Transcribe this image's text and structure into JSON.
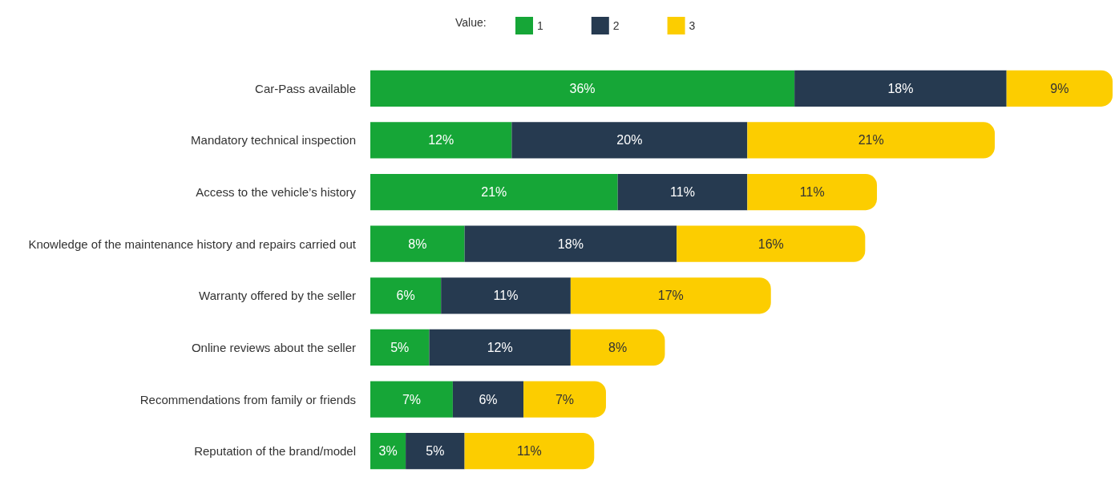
{
  "chart_data": {
    "type": "bar",
    "orientation": "horizontal",
    "stacked": true,
    "legend_title": "Value:",
    "legend": "top",
    "categories": [
      "Car-Pass available",
      "Mandatory technical inspection",
      "Access to the vehicle’s history",
      "Knowledge of the maintenance history and repairs carried out",
      "Warranty offered by the seller",
      "Online reviews about the seller",
      "Recommendations from family or friends",
      "Reputation of the brand/model"
    ],
    "series": [
      {
        "name": "1",
        "color": "#16a637",
        "values": [
          36,
          12,
          21,
          8,
          6,
          5,
          7,
          3
        ],
        "value_labels": [
          "36%",
          "12%",
          "21%",
          "8%",
          "6%",
          "5%",
          "7%",
          "3%"
        ]
      },
      {
        "name": "2",
        "color": "#263a50",
        "values": [
          18,
          20,
          11,
          18,
          11,
          12,
          6,
          5
        ],
        "value_labels": [
          "18%",
          "20%",
          "11%",
          "18%",
          "11%",
          "12%",
          "6%",
          "5%"
        ]
      },
      {
        "name": "3",
        "color": "#fccd00",
        "values": [
          9,
          21,
          11,
          16,
          17,
          8,
          7,
          11
        ],
        "value_labels": [
          "9%",
          "21%",
          "11%",
          "16%",
          "17%",
          "8%",
          "7%",
          "11%"
        ]
      }
    ]
  }
}
